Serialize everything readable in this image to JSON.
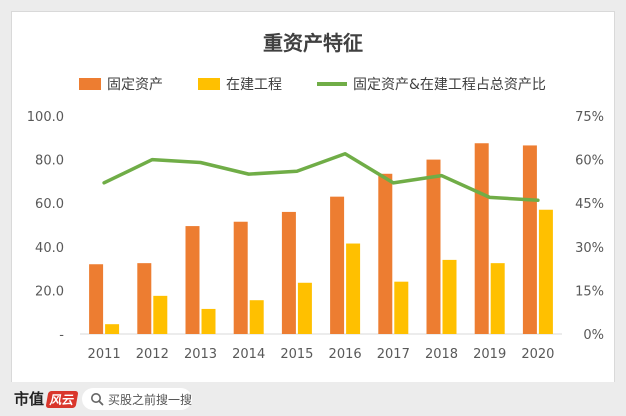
{
  "chart_data": {
    "type": "bar",
    "title": "重资产特征",
    "categories": [
      "2011",
      "2012",
      "2013",
      "2014",
      "2015",
      "2016",
      "2017",
      "2018",
      "2019",
      "2020"
    ],
    "series": [
      {
        "name": "固定资产",
        "type": "bar",
        "axis": "left",
        "color": "#ed7d31",
        "values": [
          32,
          32.5,
          49.5,
          51.5,
          56,
          63,
          73.5,
          80,
          87.5,
          86.5
        ]
      },
      {
        "name": "在建工程",
        "type": "bar",
        "axis": "left",
        "color": "#ffc000",
        "values": [
          4.5,
          17.5,
          11.5,
          15.5,
          23.5,
          41.5,
          24,
          34,
          32.5,
          57
        ]
      },
      {
        "name": "固定资产&在建工程占总资产比",
        "type": "line",
        "axis": "right",
        "color": "#70ad47",
        "values": [
          0.52,
          0.6,
          0.59,
          0.55,
          0.56,
          0.62,
          0.52,
          0.545,
          0.47,
          0.46
        ]
      }
    ],
    "ylim": [
      0,
      100
    ],
    "y2lim": [
      0,
      0.75
    ],
    "y_ticks": [
      "-",
      "20.0",
      "40.0",
      "60.0",
      "80.0",
      "100.0"
    ],
    "y2_ticks": [
      "0%",
      "15%",
      "30%",
      "45%",
      "60%",
      "75%"
    ],
    "grid": false,
    "legend_position": "top"
  },
  "footer": {
    "brand": "市值",
    "brand_mark": "风云",
    "search_placeholder": "买股之前搜一搜",
    "search_icon": "search-icon"
  }
}
